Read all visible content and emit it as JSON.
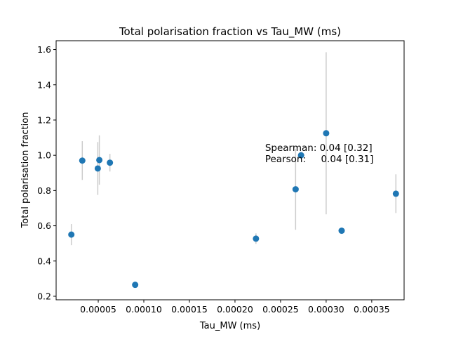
{
  "chart_data": {
    "type": "scatter",
    "title": "Total polarisation fraction vs Tau_MW (ms)",
    "xlabel": "Tau_MW (ms)",
    "ylabel": "Total polarisation fraction",
    "xlim": [
      3.8e-06,
      0.0003855
    ],
    "ylim": [
      0.18,
      1.65
    ],
    "x_ticks": [
      5e-05,
      0.0001,
      0.00015,
      0.0002,
      0.00025,
      0.0003,
      0.00035
    ],
    "x_tick_labels": [
      "0.00005",
      "0.00010",
      "0.00015",
      "0.00020",
      "0.00025",
      "0.00030",
      "0.00035"
    ],
    "y_ticks": [
      0.2,
      0.4,
      0.6,
      0.8,
      1.0,
      1.2,
      1.4,
      1.6
    ],
    "y_tick_labels": [
      "0.2",
      "0.4",
      "0.6",
      "0.8",
      "1.0",
      "1.2",
      "1.4",
      "1.6"
    ],
    "marker_color": "#1f77b4",
    "errorbar_color": "#cccccc",
    "points": [
      {
        "x": 2.05e-05,
        "y": 0.55,
        "yerr_low": 0.06,
        "yerr_high": 0.06
      },
      {
        "x": 3.25e-05,
        "y": 0.97,
        "yerr_low": 0.11,
        "yerr_high": 0.11
      },
      {
        "x": 4.95e-05,
        "y": 0.925,
        "yerr_low": 0.15,
        "yerr_high": 0.15
      },
      {
        "x": 5.12e-05,
        "y": 0.973,
        "yerr_low": 0.14,
        "yerr_high": 0.14
      },
      {
        "x": 6.28e-05,
        "y": 0.958,
        "yerr_low": 0.05,
        "yerr_high": 0.05
      },
      {
        "x": 9.05e-05,
        "y": 0.265,
        "yerr_low": 0.01,
        "yerr_high": 0.01
      },
      {
        "x": 0.000223,
        "y": 0.527,
        "yerr_low": 0.03,
        "yerr_high": 0.03
      },
      {
        "x": 0.0002665,
        "y": 0.807,
        "yerr_low": 0.23,
        "yerr_high": 0.23
      },
      {
        "x": 0.0002725,
        "y": 1.0,
        "yerr_low": 0.01,
        "yerr_high": 0.01
      },
      {
        "x": 0.0003,
        "y": 1.125,
        "yerr_low": 0.46,
        "yerr_high": 0.46
      },
      {
        "x": 0.000317,
        "y": 0.572,
        "yerr_low": 0.01,
        "yerr_high": 0.01
      },
      {
        "x": 0.0003765,
        "y": 0.782,
        "yerr_low": 0.11,
        "yerr_high": 0.11
      }
    ],
    "annotation": {
      "lines": [
        "Spearman: 0.04 [0.32]",
        "Pearson:     0.04 [0.31]"
      ],
      "anchor": {
        "x": 0.000233,
        "y": 1.025
      }
    },
    "grid": false,
    "legend": "none"
  }
}
